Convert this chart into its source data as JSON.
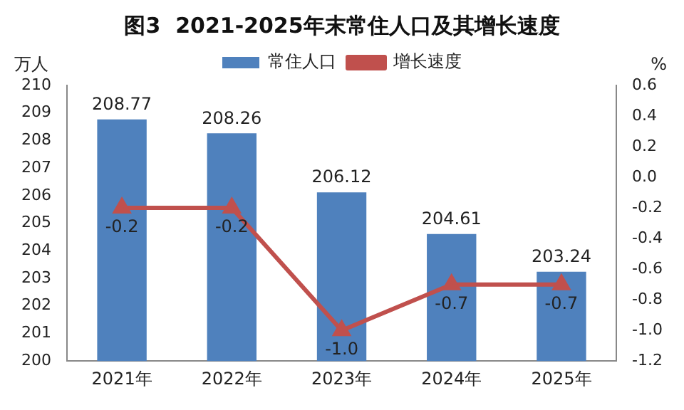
{
  "chart_data": {
    "type": "bar",
    "title": "图3  2021-2025年末常住人口及其增长速度",
    "categories": [
      "2021年",
      "2022年",
      "2023年",
      "2024年",
      "2025年"
    ],
    "series": [
      {
        "name": "常住人口",
        "color": "#4f81bd",
        "values": [
          208.77,
          208.26,
          206.12,
          204.61,
          203.24
        ],
        "value_labels": [
          "208.77",
          "208.26",
          "206.12",
          "204.61",
          "203.24"
        ]
      },
      {
        "name": "增长速度",
        "type": "line",
        "axis": "y2",
        "color": "#c0504d",
        "marker": "triangle",
        "values": [
          -0.2,
          -0.2,
          -1.0,
          -0.7,
          -0.7
        ],
        "value_labels": [
          "-0.2",
          "-0.2",
          "-1.0",
          "-0.7",
          "-0.7"
        ]
      }
    ],
    "ylabel": "万人",
    "y2label": "%",
    "ylim": [
      200,
      210
    ],
    "yticks": [
      200,
      201,
      202,
      203,
      204,
      205,
      206,
      207,
      208,
      209,
      210
    ],
    "y2lim": [
      -1.2,
      0.6
    ],
    "y2ticks": [
      {
        "value": 0.6,
        "label": "0.6"
      },
      {
        "value": 0.4,
        "label": "0.4"
      },
      {
        "value": 0.2,
        "label": "0.2"
      },
      {
        "value": 0,
        "label": "0.0"
      },
      {
        "value": -0.2,
        "label": "-0.2"
      },
      {
        "value": -0.4,
        "label": "-0.4"
      },
      {
        "value": -0.6,
        "label": "-0.6"
      },
      {
        "value": -0.8,
        "label": "-0.8"
      },
      {
        "value": -1,
        "label": "-1.0"
      },
      {
        "value": -1.2,
        "label": "-1.2"
      }
    ],
    "legend": "top",
    "grid": false
  }
}
